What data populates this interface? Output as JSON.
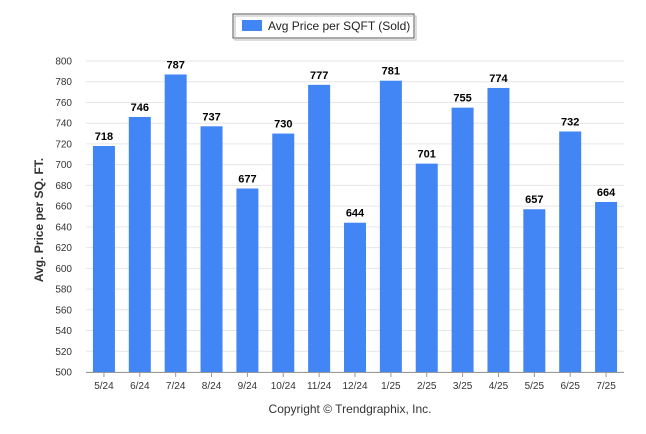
{
  "chart_data": {
    "type": "bar",
    "categories": [
      "5/24",
      "6/24",
      "7/24",
      "8/24",
      "9/24",
      "10/24",
      "11/24",
      "12/24",
      "1/25",
      "2/25",
      "3/25",
      "4/25",
      "5/25",
      "6/25",
      "7/25"
    ],
    "series": [
      {
        "name": "Avg Price per SQFT (Sold)",
        "values": [
          718,
          746,
          787,
          737,
          677,
          730,
          777,
          644,
          781,
          701,
          755,
          774,
          657,
          732,
          664
        ]
      }
    ],
    "ylabel": "Avg. Price per SQ. FT.",
    "xlabel": "",
    "ylim": [
      500,
      800
    ],
    "yticks": [
      500,
      520,
      540,
      560,
      580,
      600,
      620,
      640,
      660,
      680,
      700,
      720,
      740,
      760,
      780,
      800
    ],
    "grid": true,
    "legend_position": "top-center",
    "bar_color": "#4285f4",
    "credit": "Copyright © Trendgraphix, Inc."
  }
}
